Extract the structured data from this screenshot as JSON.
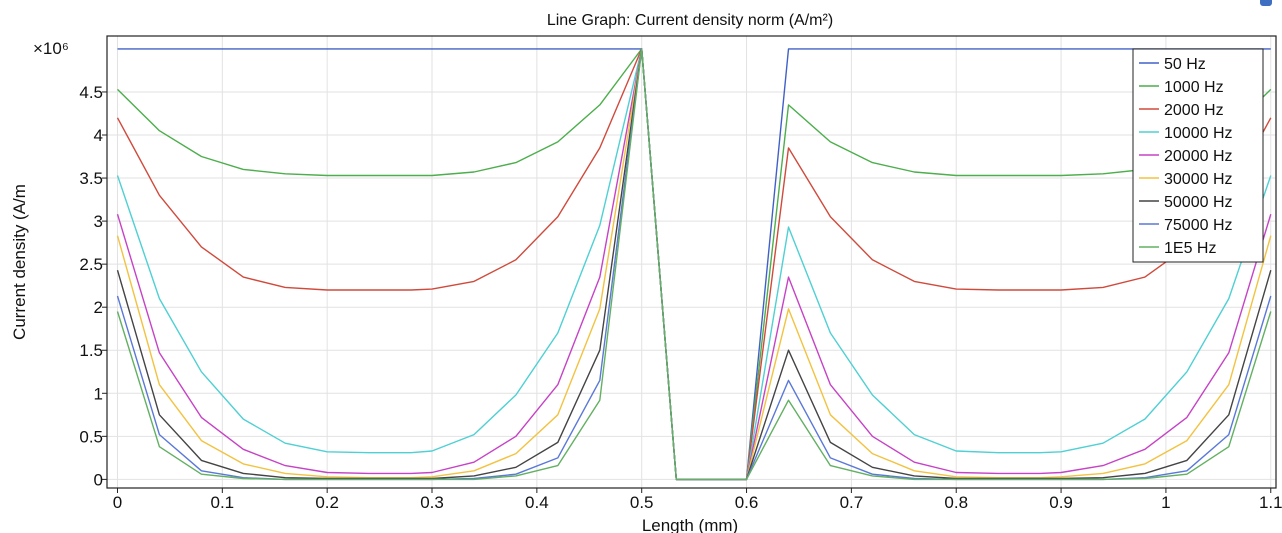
{
  "chart_data": {
    "type": "line",
    "title": "Line Graph: Current density norm (A/m²)",
    "xlabel": "Length (mm)",
    "ylabel": "Current density (A/m",
    "y_multiplier": "×10⁶",
    "xlim": [
      -0.01,
      1.105
    ],
    "ylim": [
      -0.1,
      5.15
    ],
    "x_ticks": [
      "0",
      "0.1",
      "0.2",
      "0.3",
      "0.4",
      "0.5",
      "0.6",
      "0.7",
      "0.8",
      "0.9",
      "1",
      "1.1"
    ],
    "y_ticks": [
      "0",
      "0.5",
      "1",
      "1.5",
      "2",
      "2.5",
      "3",
      "3.5",
      "4",
      "4.5"
    ],
    "grid": true,
    "legend_position": "top-right",
    "x": [
      0,
      0.04,
      0.08,
      0.12,
      0.16,
      0.2,
      0.24,
      0.28,
      0.3,
      0.34,
      0.38,
      0.42,
      0.46,
      0.5,
      0.533,
      0.6,
      0.64,
      0.68,
      0.72,
      0.76,
      0.8,
      0.84,
      0.88,
      0.9,
      0.94,
      0.98,
      1.02,
      1.06,
      1.1
    ],
    "series": [
      {
        "name": "50 Hz",
        "color": "#4060c8",
        "values": [
          5.0,
          5.0,
          5.0,
          5.0,
          5.0,
          5.0,
          5.0,
          5.0,
          5.0,
          5.0,
          5.0,
          5.0,
          5.0,
          5.0,
          0.0,
          0.0,
          5.0,
          5.0,
          5.0,
          5.0,
          5.0,
          5.0,
          5.0,
          5.0,
          5.0,
          5.0,
          5.0,
          5.0,
          5.0
        ]
      },
      {
        "name": "1000 Hz",
        "color": "#4cae4c",
        "values": [
          4.53,
          4.05,
          3.75,
          3.6,
          3.55,
          3.53,
          3.53,
          3.53,
          3.53,
          3.57,
          3.68,
          3.92,
          4.35,
          5.0,
          0.0,
          0.0,
          4.35,
          3.92,
          3.68,
          3.57,
          3.53,
          3.53,
          3.53,
          3.53,
          3.55,
          3.6,
          3.75,
          4.05,
          4.53
        ]
      },
      {
        "name": "2000 Hz",
        "color": "#d04a3c",
        "values": [
          4.2,
          3.3,
          2.7,
          2.35,
          2.23,
          2.2,
          2.2,
          2.2,
          2.21,
          2.3,
          2.55,
          3.05,
          3.85,
          5.0,
          0.0,
          0.0,
          3.85,
          3.05,
          2.55,
          2.3,
          2.21,
          2.2,
          2.2,
          2.2,
          2.23,
          2.35,
          2.7,
          3.3,
          4.2
        ]
      },
      {
        "name": "10000 Hz",
        "color": "#4ed0d4",
        "values": [
          3.53,
          2.1,
          1.25,
          0.7,
          0.42,
          0.32,
          0.31,
          0.31,
          0.33,
          0.52,
          0.98,
          1.7,
          2.95,
          5.0,
          0.0,
          0.0,
          2.93,
          1.7,
          0.98,
          0.52,
          0.33,
          0.31,
          0.31,
          0.32,
          0.42,
          0.7,
          1.25,
          2.1,
          3.53
        ]
      },
      {
        "name": "20000 Hz",
        "color": "#c642c6",
        "values": [
          3.08,
          1.47,
          0.72,
          0.35,
          0.16,
          0.08,
          0.07,
          0.07,
          0.08,
          0.2,
          0.5,
          1.1,
          2.35,
          5.0,
          0.0,
          0.0,
          2.35,
          1.1,
          0.5,
          0.2,
          0.08,
          0.07,
          0.07,
          0.08,
          0.16,
          0.35,
          0.72,
          1.47,
          3.08
        ]
      },
      {
        "name": "30000 Hz",
        "color": "#f2c240",
        "values": [
          2.83,
          1.1,
          0.45,
          0.18,
          0.07,
          0.03,
          0.02,
          0.02,
          0.03,
          0.1,
          0.3,
          0.75,
          1.98,
          5.0,
          0.0,
          0.0,
          1.98,
          0.75,
          0.3,
          0.1,
          0.03,
          0.02,
          0.02,
          0.03,
          0.07,
          0.18,
          0.45,
          1.1,
          2.83
        ]
      },
      {
        "name": "50000 Hz",
        "color": "#444444",
        "values": [
          2.43,
          0.75,
          0.22,
          0.07,
          0.02,
          0.01,
          0.01,
          0.01,
          0.01,
          0.04,
          0.14,
          0.43,
          1.5,
          5.0,
          0.0,
          0.0,
          1.5,
          0.43,
          0.14,
          0.04,
          0.01,
          0.01,
          0.01,
          0.01,
          0.02,
          0.07,
          0.22,
          0.75,
          2.43
        ]
      },
      {
        "name": "75000 Hz",
        "color": "#5a78d8",
        "values": [
          2.13,
          0.52,
          0.1,
          0.02,
          0.0,
          0.0,
          0.0,
          0.0,
          0.0,
          0.01,
          0.06,
          0.25,
          1.15,
          5.0,
          0.0,
          0.0,
          1.15,
          0.25,
          0.06,
          0.01,
          0.0,
          0.0,
          0.0,
          0.0,
          0.0,
          0.02,
          0.1,
          0.52,
          2.13
        ]
      },
      {
        "name": "1E5 Hz",
        "color": "#62b062",
        "values": [
          1.95,
          0.38,
          0.06,
          0.01,
          0.0,
          0.0,
          0.0,
          0.0,
          0.0,
          0.0,
          0.04,
          0.16,
          0.92,
          5.0,
          0.0,
          0.0,
          0.92,
          0.16,
          0.04,
          0.0,
          0.0,
          0.0,
          0.0,
          0.0,
          0.0,
          0.01,
          0.06,
          0.38,
          1.95
        ]
      }
    ]
  }
}
